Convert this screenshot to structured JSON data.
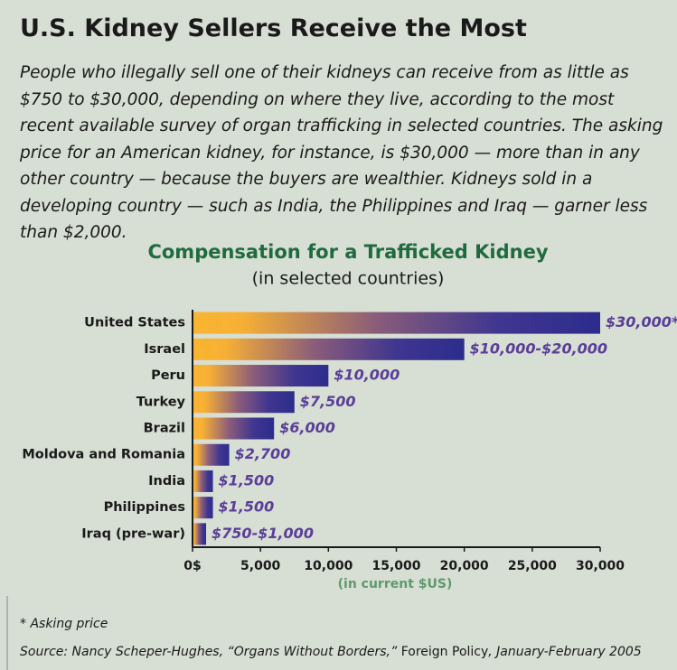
{
  "header": {
    "title": "U.S. Kidney Sellers Receive the Most",
    "description": "People who illegally sell one of their kidneys can receive from as little as $750 to $30,000, depending on where they live, according to the most recent available survey of organ trafficking in selected countries. The asking price for an American kidney, for instance, is $30,000 — more than in any other country — because the buyers are wealthier. Kidneys sold in a developing country — such as India, the Philippines and Iraq — garner less than $2,000."
  },
  "chart_data": {
    "type": "hbar",
    "title": "Compensation for a Trafficked Kidney",
    "subtitle": "(in selected countries)",
    "x_label": "(in current $US)",
    "categories": [
      "United States",
      "Israel",
      "Peru",
      "Turkey",
      "Brazil",
      "Moldova and Romania",
      "India",
      "Philippines",
      "Iraq (pre-war)"
    ],
    "values": [
      30000,
      20000,
      10000,
      7500,
      6000,
      2700,
      1500,
      1500,
      1000
    ],
    "value_labels": [
      "$30,000*",
      "$10,000-$20,000",
      "$10,000",
      "$7,500",
      "$6,000",
      "$2,700",
      "$1,500",
      "$1,500",
      "$750-$1,000"
    ],
    "xlim": [
      0,
      30000
    ],
    "xticks": [
      {
        "value": 0,
        "label": "0$"
      },
      {
        "value": 5000,
        "label": "5,000"
      },
      {
        "value": 10000,
        "label": "10,000"
      },
      {
        "value": 15000,
        "label": "15,000"
      },
      {
        "value": 20000,
        "label": "20,000"
      },
      {
        "value": 25000,
        "label": "25,000"
      },
      {
        "value": 30000,
        "label": "30,000"
      }
    ],
    "grid": false
  },
  "footnote": "* Asking price",
  "source": {
    "prefix": "Source:  Nancy Scheper-Hughes, “Organs Without Borders,” ",
    "publication": "Foreign Policy",
    "date": ", January-February 2005"
  }
}
